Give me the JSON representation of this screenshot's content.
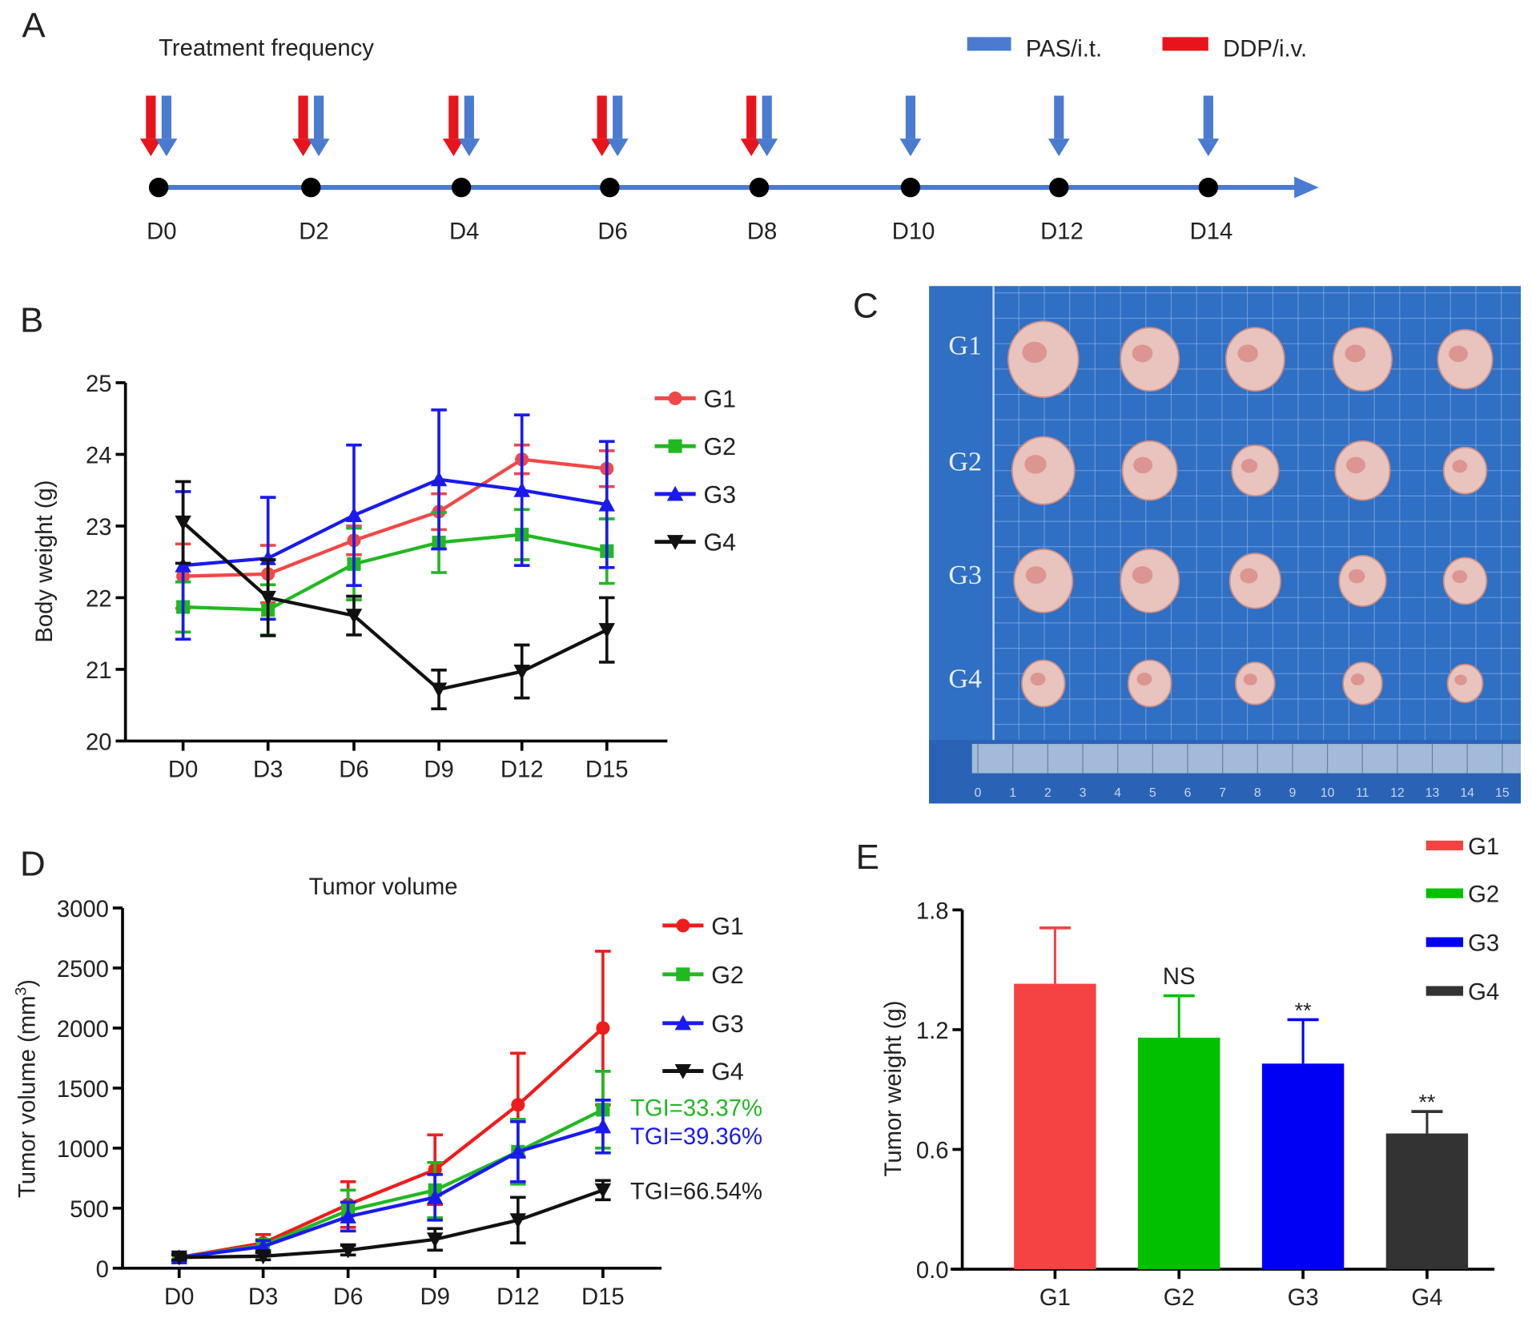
{
  "panel_labels": {
    "a": "A",
    "b": "B",
    "c": "C",
    "d": "D",
    "e": "E"
  },
  "timeline": {
    "title": "Treatment frequency",
    "legend": [
      {
        "label": "PAS/i.t.",
        "color": "#4a7bd0"
      },
      {
        "label": "DDP/i.v.",
        "color": "#e8141c"
      }
    ],
    "days": [
      "D0",
      "D2",
      "D4",
      "D6",
      "D8",
      "D10",
      "D12",
      "D14"
    ],
    "ddp_days": [
      "D0",
      "D2",
      "D4",
      "D6",
      "D8"
    ],
    "pas_days": [
      "D0",
      "D2",
      "D4",
      "D6",
      "D8",
      "D10",
      "D12",
      "D14"
    ]
  },
  "photo": {
    "row_labels": [
      "G1",
      "G2",
      "G3",
      "G4"
    ],
    "tumors_per_row": 5,
    "ruler_ticks": [
      "0",
      "1",
      "2",
      "3",
      "4",
      "5",
      "6",
      "7",
      "8",
      "9",
      "10",
      "11",
      "12",
      "13",
      "14",
      "15"
    ],
    "background_color": "#2f6fc4"
  },
  "chart_data": [
    {
      "type": "line",
      "panel": "B",
      "title": "",
      "xlabel": "",
      "ylabel": "Body weight (g)",
      "categories": [
        "D0",
        "D3",
        "D6",
        "D9",
        "D12",
        "D15"
      ],
      "ylim": [
        20,
        25
      ],
      "yticks": [
        "20",
        "21",
        "22",
        "23",
        "24",
        "25"
      ],
      "legend_position": "right",
      "series": [
        {
          "name": "G1",
          "color": "#f04848",
          "marker": "circle",
          "values": [
            22.3,
            22.33,
            22.8,
            23.2,
            23.93,
            23.8
          ],
          "errors": [
            0.45,
            0.4,
            0.2,
            0.25,
            0.2,
            0.25
          ]
        },
        {
          "name": "G2",
          "color": "#22b822",
          "marker": "square",
          "values": [
            21.87,
            21.83,
            22.47,
            22.77,
            22.88,
            22.65
          ],
          "errors": [
            0.35,
            0.35,
            0.5,
            0.42,
            0.35,
            0.45
          ]
        },
        {
          "name": "G3",
          "color": "#1a1aee",
          "marker": "triangle-up",
          "values": [
            22.45,
            22.55,
            23.15,
            23.65,
            23.5,
            23.3
          ],
          "errors": [
            1.03,
            0.85,
            0.98,
            0.97,
            1.05,
            0.88
          ]
        },
        {
          "name": "G4",
          "color": "#111111",
          "marker": "triangle-down",
          "values": [
            23.05,
            22.0,
            21.75,
            20.72,
            20.97,
            21.55
          ],
          "errors": [
            0.57,
            0.53,
            0.27,
            0.27,
            0.37,
            0.45
          ]
        }
      ]
    },
    {
      "type": "line",
      "panel": "D",
      "title": "Tumor volume",
      "xlabel": "",
      "ylabel": "Tumor volume (mm",
      "ylabel_sup": "3",
      "ylabel_end": ")",
      "categories": [
        "D0",
        "D3",
        "D6",
        "D9",
        "D12",
        "D15"
      ],
      "ylim": [
        0,
        3000
      ],
      "yticks": [
        "0",
        "500",
        "1000",
        "1500",
        "2000",
        "2500",
        "3000"
      ],
      "legend_position": "right",
      "series": [
        {
          "name": "G1",
          "color": "#ee1c1c",
          "marker": "circle",
          "values": [
            90,
            210,
            530,
            820,
            1360,
            2000
          ],
          "errors": [
            30,
            70,
            190,
            290,
            430,
            640
          ]
        },
        {
          "name": "G2",
          "color": "#22b822",
          "marker": "square",
          "values": [
            90,
            190,
            480,
            650,
            970,
            1320
          ],
          "errors": [
            30,
            50,
            170,
            230,
            270,
            320
          ]
        },
        {
          "name": "G3",
          "color": "#1a1aee",
          "marker": "triangle-up",
          "values": [
            90,
            180,
            430,
            590,
            970,
            1180
          ],
          "errors": [
            30,
            50,
            120,
            190,
            250,
            220
          ]
        },
        {
          "name": "G4",
          "color": "#111111",
          "marker": "triangle-down",
          "values": [
            90,
            100,
            150,
            240,
            400,
            650
          ],
          "errors": [
            20,
            30,
            40,
            90,
            190,
            80
          ]
        }
      ],
      "annotations": [
        {
          "text": "TGI=33.37%",
          "color": "#22b822"
        },
        {
          "text": "TGI=39.36%",
          "color": "#1a1aee"
        },
        {
          "text": "TGI=66.54%",
          "color": "#222222"
        }
      ]
    },
    {
      "type": "bar",
      "panel": "E",
      "title": "",
      "xlabel": "",
      "ylabel": "Tumor weight (g)",
      "categories": [
        "G1",
        "G2",
        "G3",
        "G4"
      ],
      "values": [
        1.43,
        1.16,
        1.03,
        0.68
      ],
      "errors": [
        0.28,
        0.21,
        0.22,
        0.11
      ],
      "colors": [
        "#f54242",
        "#00c000",
        "#0000f5",
        "#333333"
      ],
      "significance": [
        "",
        "NS",
        "**",
        "**"
      ],
      "ylim": [
        0,
        1.8
      ],
      "yticks": [
        "0.0",
        "0.6",
        "1.2",
        "1.8"
      ],
      "legend_position": "top-right",
      "legend": [
        "G1",
        "G2",
        "G3",
        "G4"
      ]
    }
  ]
}
